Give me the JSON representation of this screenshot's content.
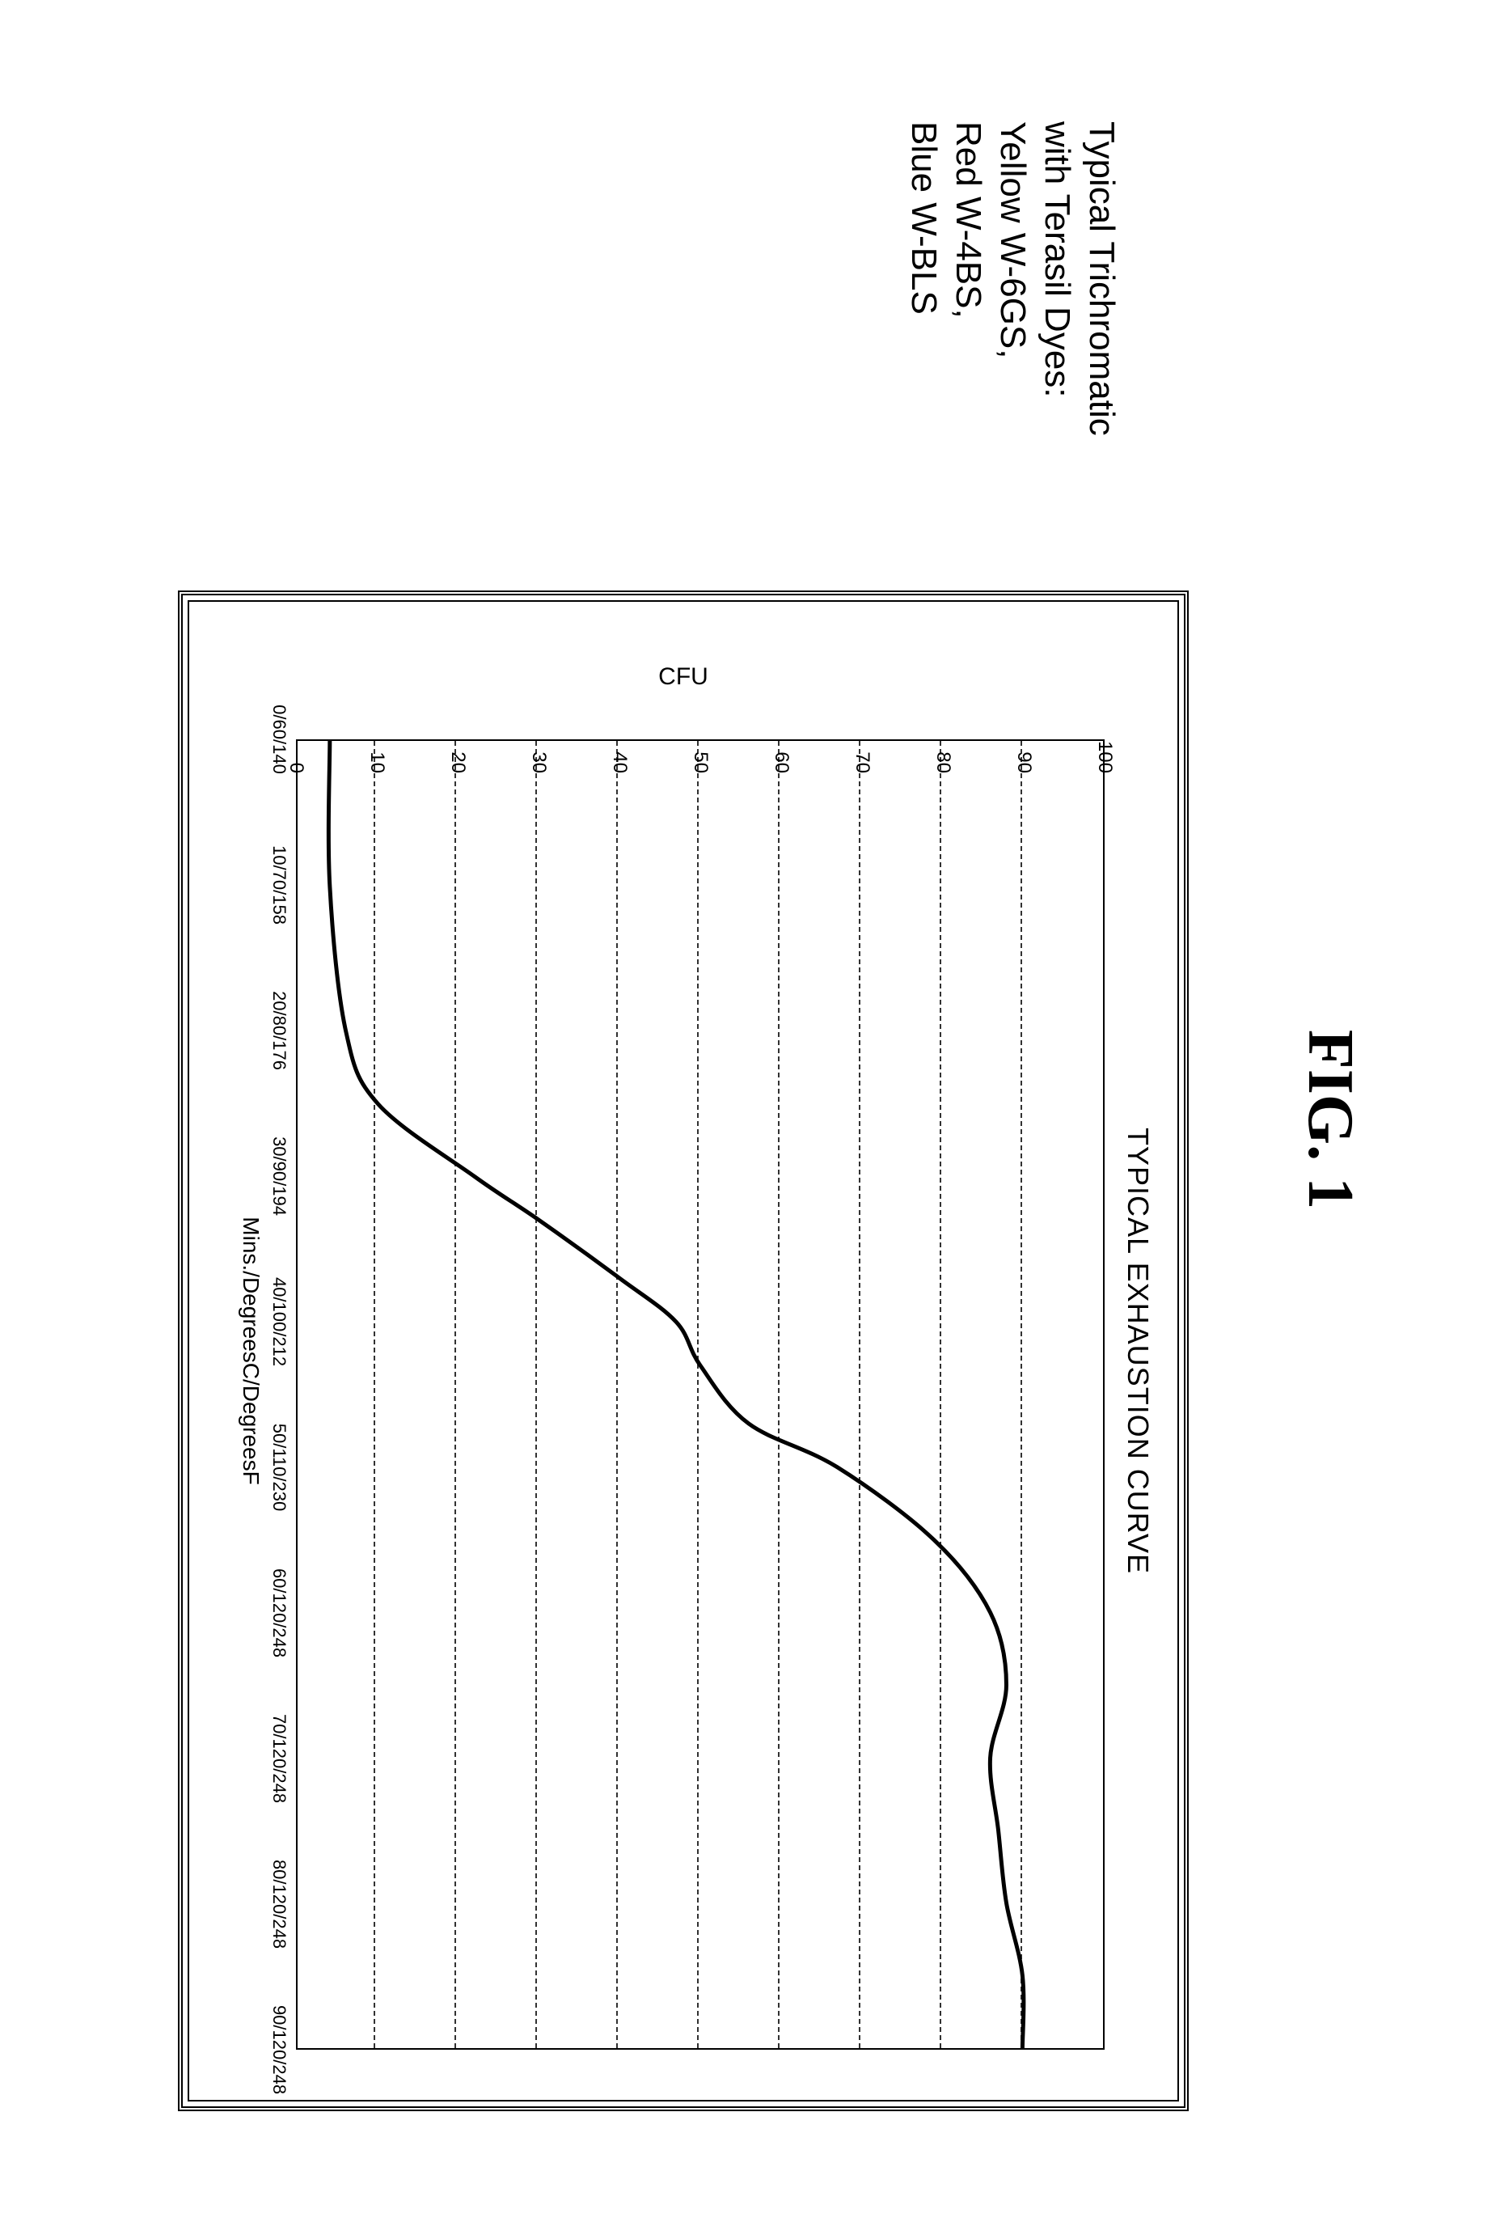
{
  "figure_label": "FIG. 1",
  "side_caption": {
    "lines": [
      "Typical Trichromatic",
      "with Terasil Dyes:",
      "Yellow W-6GS,",
      "Red W-4BS,",
      "Blue W-BLS"
    ],
    "font_family": "Arial",
    "font_size_pt": 18
  },
  "chart": {
    "type": "line",
    "title": "TYPICAL EXHAUSTION CURVE",
    "title_fontsize": 36,
    "background_color": "#ffffff",
    "border_color": "#000000",
    "grid_color": "#000000",
    "grid_style": "dashed",
    "line_color": "#000000",
    "line_width": 5,
    "y_axis": {
      "label": "CFU",
      "label_fontsize": 30,
      "min": 0,
      "max": 100,
      "tick_step": 10,
      "ticks": [
        0,
        10,
        20,
        30,
        40,
        50,
        60,
        70,
        80,
        90,
        100
      ]
    },
    "x_axis": {
      "label": "Mins./DegreesC/DegreesF",
      "label_fontsize": 28,
      "tick_labels": [
        "0/60/140",
        "10/70/158",
        "20/80/176",
        "30/90/194",
        "40/100/212",
        "50/110/230",
        "60/120/248",
        "70/120/248",
        "80/120/248",
        "90/120/248"
      ]
    },
    "curve_points": [
      {
        "x": 0,
        "y": 4
      },
      {
        "x": 1,
        "y": 4
      },
      {
        "x": 2,
        "y": 6
      },
      {
        "x": 2.5,
        "y": 10
      },
      {
        "x": 3,
        "y": 22
      },
      {
        "x": 3.3,
        "y": 30
      },
      {
        "x": 3.7,
        "y": 40
      },
      {
        "x": 4,
        "y": 47
      },
      {
        "x": 4.3,
        "y": 50
      },
      {
        "x": 4.7,
        "y": 56
      },
      {
        "x": 5,
        "y": 67
      },
      {
        "x": 5.5,
        "y": 79
      },
      {
        "x": 6,
        "y": 86
      },
      {
        "x": 6.5,
        "y": 88
      },
      {
        "x": 7,
        "y": 86
      },
      {
        "x": 7.5,
        "y": 87
      },
      {
        "x": 8,
        "y": 88
      },
      {
        "x": 8.5,
        "y": 90
      },
      {
        "x": 9,
        "y": 90
      }
    ]
  }
}
